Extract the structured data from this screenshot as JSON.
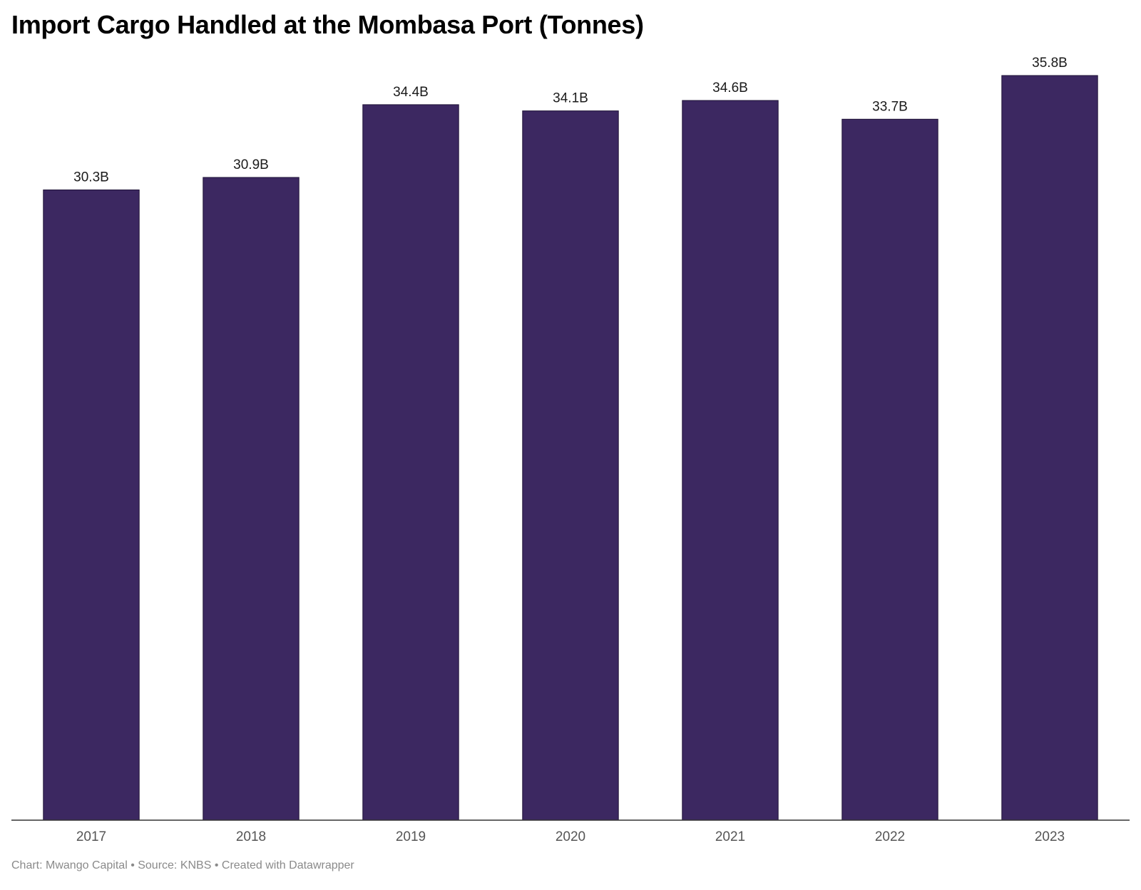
{
  "chart_data": {
    "type": "bar",
    "title": "Import Cargo Handled at the Mombasa Port (Tonnes)",
    "xlabel": "",
    "ylabel": "",
    "categories": [
      "2017",
      "2018",
      "2019",
      "2020",
      "2021",
      "2022",
      "2023"
    ],
    "values": [
      30.3,
      30.9,
      34.4,
      34.1,
      34.6,
      33.7,
      35.8
    ],
    "value_labels": [
      "30.3B",
      "30.9B",
      "34.4B",
      "34.1B",
      "34.6B",
      "33.7B",
      "35.8B"
    ],
    "ylim": [
      0,
      35.8
    ],
    "grid": false,
    "legend": "none",
    "bar_color": "#3c2861",
    "footer": "Chart: Mwango Capital • Source: KNBS • Created with Datawrapper"
  }
}
